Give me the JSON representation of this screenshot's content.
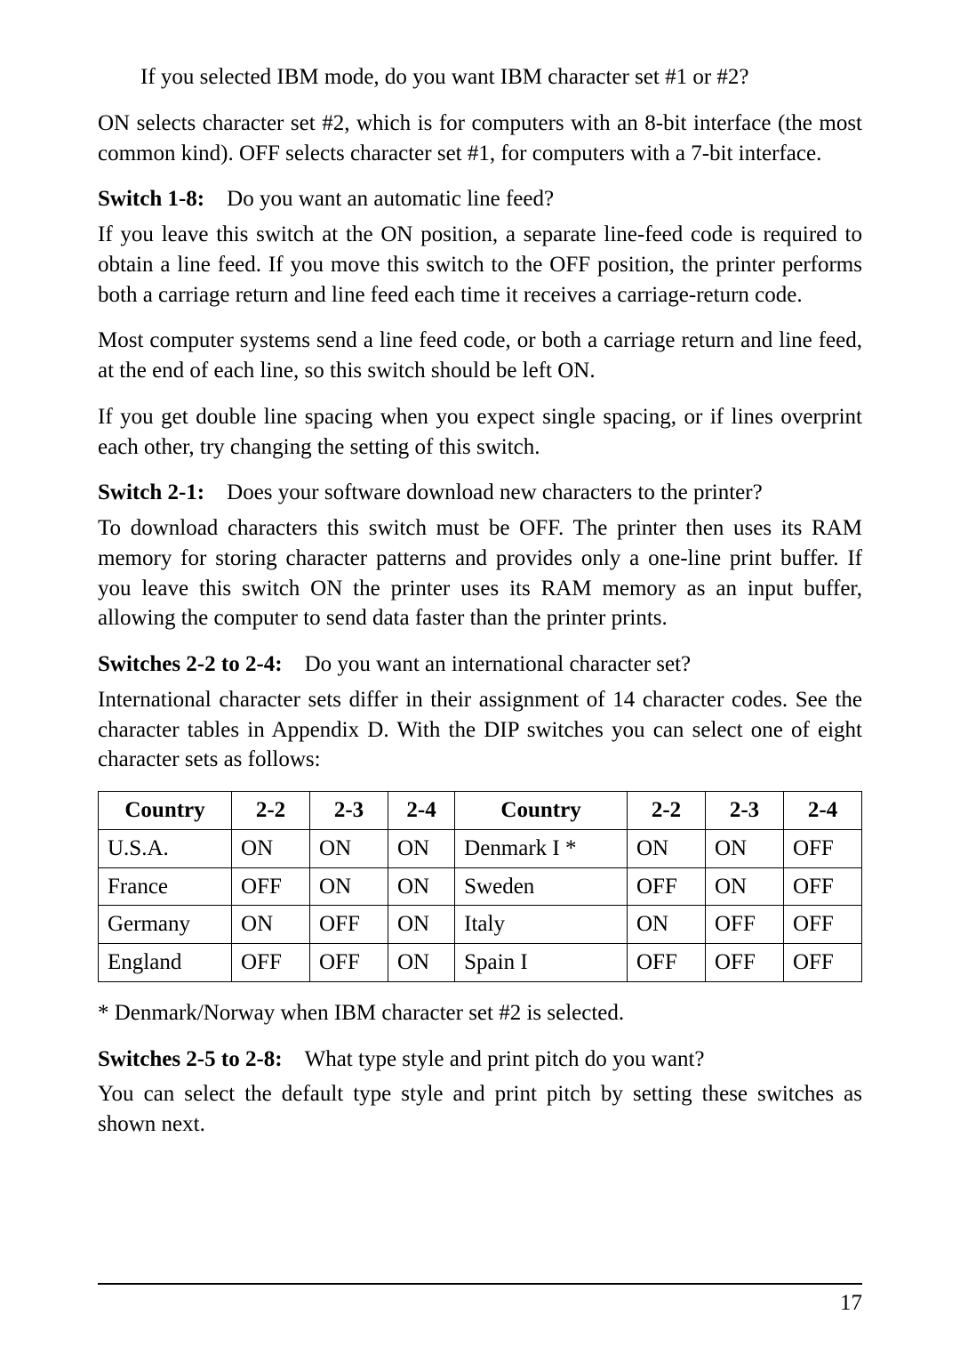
{
  "intro": {
    "line1": "If you selected IBM mode, do you want IBM character set #1 or #2?",
    "para1": "ON selects character set #2, which is for computers with an 8-bit interface (the most common kind). OFF selects character set #1, for computers with a 7-bit interface."
  },
  "sw18": {
    "label": "Switch 1-8:",
    "question": "Do you want an automatic line feed?",
    "p1": "If you leave this switch at the ON position, a separate line-feed code is required to obtain a line feed. If you move this switch to the OFF position, the printer performs both a carriage return and line feed each time it receives a carriage-return code.",
    "p2": "Most computer systems send a line feed code, or both a carriage return and line feed, at the end of each line, so this switch should be left ON.",
    "p3": "If you get double line spacing when you expect single spacing, or if lines overprint each other, try changing the setting of this switch."
  },
  "sw21": {
    "label": "Switch 2-1:",
    "question": "Does your software download new characters to the printer?",
    "p1": "To download characters this switch must be OFF. The printer then uses its RAM memory for storing character patterns and provides only a one-line print buffer. If you leave this switch ON the printer uses its RAM memory as an input buffer, allowing the computer to send data faster than the printer prints."
  },
  "sw22_24": {
    "label": "Switches 2-2 to 2-4:",
    "question": "Do you want an international character set?",
    "p1": "International character sets differ in their assignment of 14 character codes. See the character tables in Appendix D.  With the DIP switches you can select one of eight character sets as follows:"
  },
  "table": {
    "headers": [
      "Country",
      "2-2",
      "2-3",
      "2-4",
      "Country",
      "2-2",
      "2-3",
      "2-4"
    ],
    "rows": [
      [
        "U.S.A.",
        "ON",
        "ON",
        "ON",
        "Denmark I *",
        "ON",
        "ON",
        "OFF"
      ],
      [
        "France",
        "OFF",
        "ON",
        "ON",
        "Sweden",
        "OFF",
        "ON",
        "OFF"
      ],
      [
        "Germany",
        "ON",
        "OFF",
        "ON",
        "Italy",
        "ON",
        "OFF",
        "OFF"
      ],
      [
        "England",
        "OFF",
        "OFF",
        "ON",
        "Spain I",
        "OFF",
        "OFF",
        "OFF"
      ]
    ]
  },
  "footnote": "*    Denmark/Norway when IBM character set #2 is selected.",
  "sw25_28": {
    "label": "Switches 2-5 to 2-8:",
    "question": "What type style and print pitch do you want?",
    "p1": "You can select the default type style and print pitch by setting these switches as shown next."
  },
  "page_number": "17"
}
